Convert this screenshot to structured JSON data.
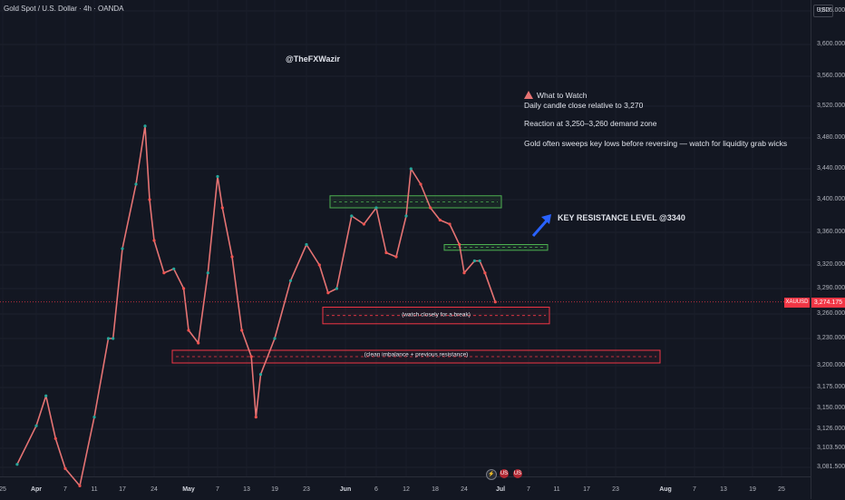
{
  "header": {
    "symbol_title": "Gold Spot / U.S. Dollar · 4h · OANDA"
  },
  "currency": "USD",
  "author": "@TheFXWazir",
  "notes": {
    "what_to_watch": "What to Watch",
    "line1": "Daily candle close relative to 3,270",
    "line2": "Reaction at 3,250–3,260 demand zone",
    "line3": "Gold often sweeps key lows before reversing — watch for liquidity grab wicks"
  },
  "key_resistance": "KEY RESISTANCE LEVEL @3340",
  "zones": {
    "upper_resistance": {
      "top": 3405,
      "bottom": 3390
    },
    "key_resistance": {
      "top": 3345,
      "bottom": 3338
    },
    "demand": {
      "top": 3268,
      "bottom": 3248,
      "label": "(watch closely for a break)"
    },
    "imbalance": {
      "top": 3217,
      "bottom": 3203,
      "label": "(clean imbalance + previous resistance)"
    }
  },
  "symbol_tag": "XAUUSD",
  "last_price": "3,274.175",
  "events": {
    "e1": "⚡",
    "e2": "US",
    "e3": "US"
  },
  "chart_data": {
    "type": "line",
    "title": "Gold Spot / U.S. Dollar · 4h · OANDA",
    "y_ticks": [
      "3,625.000",
      "3,600.000",
      "3,560.000",
      "3,520.000",
      "3,480.000",
      "3,440.000",
      "3,400.000",
      "3,360.000",
      "3,320.000",
      "3,290.000",
      "3,260.000",
      "3,230.000",
      "3,200.000",
      "3,175.000",
      "3,150.000",
      "3,126.000",
      "3,103.500",
      "3,081.500"
    ],
    "x_ticks": [
      "25",
      "Apr",
      "7",
      "11",
      "17",
      "24",
      "May",
      "7",
      "13",
      "19",
      "23",
      "Jun",
      "6",
      "12",
      "18",
      "24",
      "Jul",
      "7",
      "11",
      "17",
      "23",
      "Aug",
      "7",
      "13",
      "19",
      "25"
    ],
    "x_labels_bold": [
      "Apr",
      "May",
      "Jun",
      "Jul",
      "Aug"
    ],
    "series": [
      {
        "values": [
          [
            "Mar 28",
            3085
          ],
          [
            "Apr 1",
            3130
          ],
          [
            "Apr 3",
            3165
          ],
          [
            "Apr 5",
            3115
          ],
          [
            "Apr 7",
            3080
          ],
          [
            "Apr 9",
            3060
          ],
          [
            "Apr 11",
            3140
          ],
          [
            "Apr 14",
            3230
          ],
          [
            "Apr 15",
            3230
          ],
          [
            "Apr 17",
            3340
          ],
          [
            "Apr 20",
            3420
          ],
          [
            "Apr 22",
            3495
          ],
          [
            "Apr 23",
            3400
          ],
          [
            "Apr 24",
            3350
          ],
          [
            "Apr 26",
            3310
          ],
          [
            "Apr 28",
            3315
          ],
          [
            "Apr 30",
            3290
          ],
          [
            "May 1",
            3240
          ],
          [
            "May 3",
            3225
          ],
          [
            "May 5",
            3310
          ],
          [
            "May 7",
            3430
          ],
          [
            "May 8",
            3390
          ],
          [
            "May 10",
            3330
          ],
          [
            "May 12",
            3240
          ],
          [
            "May 14",
            3210
          ],
          [
            "May 15",
            3140
          ],
          [
            "May 16",
            3190
          ],
          [
            "May 19",
            3230
          ],
          [
            "May 21",
            3300
          ],
          [
            "May 23",
            3345
          ],
          [
            "May 26",
            3320
          ],
          [
            "May 28",
            3285
          ],
          [
            "May 30",
            3290
          ],
          [
            "Jun 2",
            3380
          ],
          [
            "Jun 4",
            3370
          ],
          [
            "Jun 6",
            3390
          ],
          [
            "Jun 8",
            3335
          ],
          [
            "Jun 10",
            3330
          ],
          [
            "Jun 12",
            3380
          ],
          [
            "Jun 13",
            3440
          ],
          [
            "Jun 15",
            3420
          ],
          [
            "Jun 17",
            3390
          ],
          [
            "Jun 19",
            3375
          ],
          [
            "Jun 21",
            3370
          ],
          [
            "Jun 23",
            3345
          ],
          [
            "Jun 24",
            3310
          ],
          [
            "Jun 26",
            3325
          ],
          [
            "Jun 27",
            3325
          ],
          [
            "Jun 28",
            3310
          ],
          [
            "Jun 30",
            3274.175
          ]
        ]
      }
    ]
  }
}
